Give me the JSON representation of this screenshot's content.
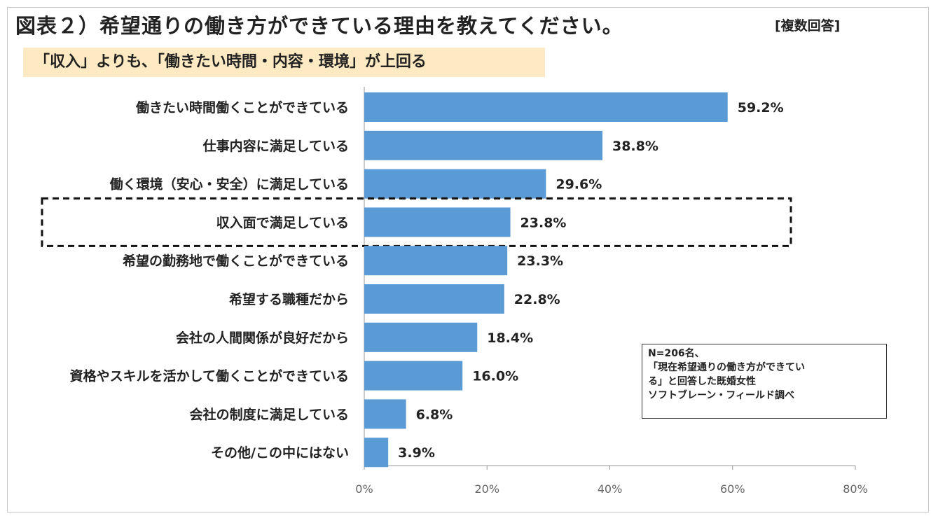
{
  "figure": {
    "title": "図表２）希望通りの働き方ができている理由を教えてください。",
    "multiple_answer_tag": "[複数回答]",
    "subtitle": "「収入」よりも、「働きたい時間・内容・環境」が上回る",
    "note": {
      "line1": "N=206名、",
      "line2": "「現在希望通りの働き方ができてい",
      "line3": "る」と回答した既婚女性",
      "line4": "ソフトブレーン・フィールド調べ"
    }
  },
  "chart_data": {
    "type": "bar",
    "orientation": "horizontal",
    "categories": [
      "働きたい時間働くことができている",
      "仕事内容に満足している",
      "働く環境（安心・安全）に満足している",
      "収入面で満足している",
      "希望の勤務地で働くことができている",
      "希望する職種だから",
      "会社の人間関係が良好だから",
      "資格やスキルを活かして働くことができている",
      "会社の制度に満足している",
      "その他/この中にはない"
    ],
    "values": [
      59.2,
      38.8,
      29.6,
      23.8,
      23.3,
      22.8,
      18.4,
      16.0,
      6.8,
      3.9
    ],
    "value_labels": [
      "59.2%",
      "38.8%",
      "29.6%",
      "23.8%",
      "23.3%",
      "22.8%",
      "18.4%",
      "16.0%",
      "6.8%",
      "3.9%"
    ],
    "xlim": [
      0,
      80
    ],
    "xticks": [
      "0%",
      "20%",
      "40%",
      "60%",
      "80%"
    ],
    "highlighted_category": "収入面で満足している",
    "bar_color": "#5b9bd5",
    "grid": false
  }
}
